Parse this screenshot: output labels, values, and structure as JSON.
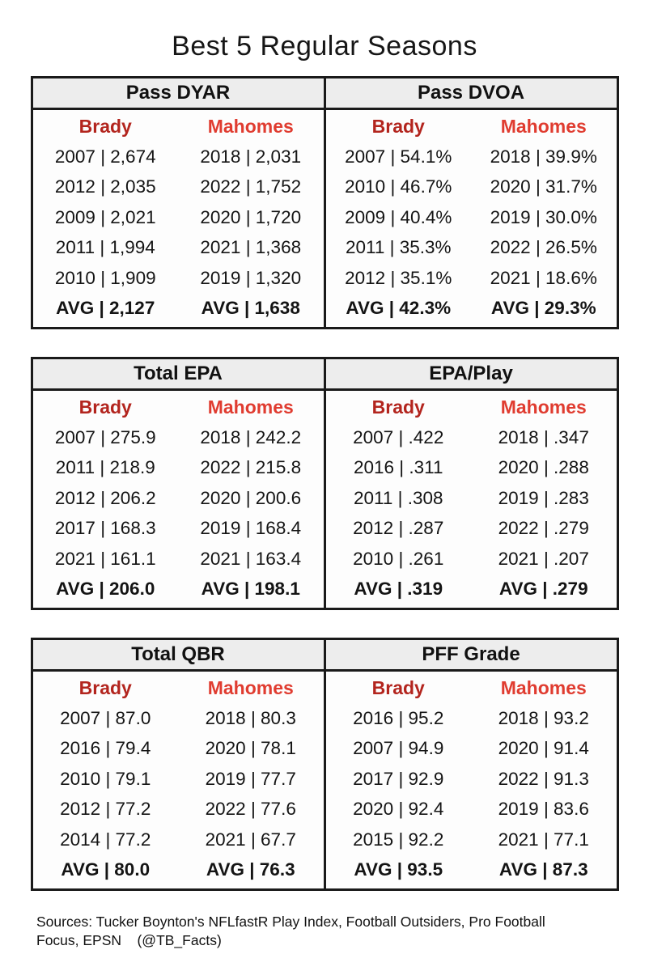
{
  "title": "Best 5 Regular Seasons",
  "colors": {
    "brady_red": "#b3251e",
    "mahomes_red": "#e03c30",
    "header_bg": "#ededed",
    "border": "#1a1a1a",
    "text": "#141414"
  },
  "metrics": [
    {
      "title": "Pass DYAR",
      "columns": [
        {
          "player": "Brady",
          "rows": [
            "2007 | 2,674",
            "2012 | 2,035",
            "2009 | 2,021",
            "2011 | 1,994",
            "2010 | 1,909",
            "AVG | 2,127"
          ]
        },
        {
          "player": "Mahomes",
          "rows": [
            "2018 | 2,031",
            "2022 | 1,752",
            "2020 | 1,720",
            "2021 | 1,368",
            "2019 | 1,320",
            "AVG | 1,638"
          ]
        }
      ]
    },
    {
      "title": "Pass DVOA",
      "columns": [
        {
          "player": "Brady",
          "rows": [
            "2007 | 54.1%",
            "2010 | 46.7%",
            "2009 | 40.4%",
            "2011 | 35.3%",
            "2012 | 35.1%",
            "AVG | 42.3%"
          ]
        },
        {
          "player": "Mahomes",
          "rows": [
            "2018 | 39.9%",
            "2020 | 31.7%",
            "2019 | 30.0%",
            "2022 | 26.5%",
            "2021 | 18.6%",
            "AVG | 29.3%"
          ]
        }
      ]
    },
    {
      "title": "Total EPA",
      "columns": [
        {
          "player": "Brady",
          "rows": [
            "2007 | 275.9",
            "2011 | 218.9",
            "2012 | 206.2",
            "2017 | 168.3",
            "2021 | 161.1",
            "AVG | 206.0"
          ]
        },
        {
          "player": "Mahomes",
          "rows": [
            "2018 | 242.2",
            "2022 | 215.8",
            "2020 | 200.6",
            "2019 | 168.4",
            "2021 | 163.4",
            "AVG | 198.1"
          ]
        }
      ]
    },
    {
      "title": "EPA/Play",
      "columns": [
        {
          "player": "Brady",
          "rows": [
            "2007 | .422",
            "2016 | .311",
            "2011 | .308",
            "2012 | .287",
            "2010 | .261",
            "AVG | .319"
          ]
        },
        {
          "player": "Mahomes",
          "rows": [
            "2018 | .347",
            "2020 | .288",
            "2019 | .283",
            "2022 | .279",
            "2021 | .207",
            "AVG | .279"
          ]
        }
      ]
    },
    {
      "title": "Total QBR",
      "columns": [
        {
          "player": "Brady",
          "rows": [
            "2007 | 87.0",
            "2016 | 79.4",
            "2010 | 79.1",
            "2012 | 77.2",
            "2014 | 77.2",
            "AVG | 80.0"
          ]
        },
        {
          "player": "Mahomes",
          "rows": [
            "2018 | 80.3",
            "2020 | 78.1",
            "2019 | 77.7",
            "2022 | 77.6",
            "2021 | 67.7",
            "AVG | 76.3"
          ]
        }
      ]
    },
    {
      "title": "PFF Grade",
      "columns": [
        {
          "player": "Brady",
          "rows": [
            "2016 | 95.2",
            "2007 | 94.9",
            "2017 | 92.9",
            "2020 | 92.4",
            "2015 | 92.2",
            "AVG | 93.5"
          ]
        },
        {
          "player": "Mahomes",
          "rows": [
            "2018 | 93.2",
            "2020 | 91.4",
            "2022 | 91.3",
            "2019 | 83.6",
            "2021 | 77.1",
            "AVG | 87.3"
          ]
        }
      ]
    }
  ],
  "chart_data": [
    {
      "type": "table",
      "title": "Pass DYAR",
      "series": [
        {
          "name": "Brady",
          "points": [
            {
              "year": 2007,
              "value": 2674
            },
            {
              "year": 2012,
              "value": 2035
            },
            {
              "year": 2009,
              "value": 2021
            },
            {
              "year": 2011,
              "value": 1994
            },
            {
              "year": 2010,
              "value": 1909
            }
          ],
          "avg": 2127
        },
        {
          "name": "Mahomes",
          "points": [
            {
              "year": 2018,
              "value": 2031
            },
            {
              "year": 2022,
              "value": 1752
            },
            {
              "year": 2020,
              "value": 1720
            },
            {
              "year": 2021,
              "value": 1368
            },
            {
              "year": 2019,
              "value": 1320
            }
          ],
          "avg": 1638
        }
      ]
    },
    {
      "type": "table",
      "title": "Pass DVOA",
      "unit": "%",
      "series": [
        {
          "name": "Brady",
          "points": [
            {
              "year": 2007,
              "value": 54.1
            },
            {
              "year": 2010,
              "value": 46.7
            },
            {
              "year": 2009,
              "value": 40.4
            },
            {
              "year": 2011,
              "value": 35.3
            },
            {
              "year": 2012,
              "value": 35.1
            }
          ],
          "avg": 42.3
        },
        {
          "name": "Mahomes",
          "points": [
            {
              "year": 2018,
              "value": 39.9
            },
            {
              "year": 2020,
              "value": 31.7
            },
            {
              "year": 2019,
              "value": 30.0
            },
            {
              "year": 2022,
              "value": 26.5
            },
            {
              "year": 2021,
              "value": 18.6
            }
          ],
          "avg": 29.3
        }
      ]
    },
    {
      "type": "table",
      "title": "Total EPA",
      "series": [
        {
          "name": "Brady",
          "points": [
            {
              "year": 2007,
              "value": 275.9
            },
            {
              "year": 2011,
              "value": 218.9
            },
            {
              "year": 2012,
              "value": 206.2
            },
            {
              "year": 2017,
              "value": 168.3
            },
            {
              "year": 2021,
              "value": 161.1
            }
          ],
          "avg": 206.0
        },
        {
          "name": "Mahomes",
          "points": [
            {
              "year": 2018,
              "value": 242.2
            },
            {
              "year": 2022,
              "value": 215.8
            },
            {
              "year": 2020,
              "value": 200.6
            },
            {
              "year": 2019,
              "value": 168.4
            },
            {
              "year": 2021,
              "value": 163.4
            }
          ],
          "avg": 198.1
        }
      ]
    },
    {
      "type": "table",
      "title": "EPA/Play",
      "series": [
        {
          "name": "Brady",
          "points": [
            {
              "year": 2007,
              "value": 0.422
            },
            {
              "year": 2016,
              "value": 0.311
            },
            {
              "year": 2011,
              "value": 0.308
            },
            {
              "year": 2012,
              "value": 0.287
            },
            {
              "year": 2010,
              "value": 0.261
            }
          ],
          "avg": 0.319
        },
        {
          "name": "Mahomes",
          "points": [
            {
              "year": 2018,
              "value": 0.347
            },
            {
              "year": 2020,
              "value": 0.288
            },
            {
              "year": 2019,
              "value": 0.283
            },
            {
              "year": 2022,
              "value": 0.279
            },
            {
              "year": 2021,
              "value": 0.207
            }
          ],
          "avg": 0.279
        }
      ]
    },
    {
      "type": "table",
      "title": "Total QBR",
      "series": [
        {
          "name": "Brady",
          "points": [
            {
              "year": 2007,
              "value": 87.0
            },
            {
              "year": 2016,
              "value": 79.4
            },
            {
              "year": 2010,
              "value": 79.1
            },
            {
              "year": 2012,
              "value": 77.2
            },
            {
              "year": 2014,
              "value": 77.2
            }
          ],
          "avg": 80.0
        },
        {
          "name": "Mahomes",
          "points": [
            {
              "year": 2018,
              "value": 80.3
            },
            {
              "year": 2020,
              "value": 78.1
            },
            {
              "year": 2019,
              "value": 77.7
            },
            {
              "year": 2022,
              "value": 77.6
            },
            {
              "year": 2021,
              "value": 67.7
            }
          ],
          "avg": 76.3
        }
      ]
    },
    {
      "type": "table",
      "title": "PFF Grade",
      "series": [
        {
          "name": "Brady",
          "points": [
            {
              "year": 2016,
              "value": 95.2
            },
            {
              "year": 2007,
              "value": 94.9
            },
            {
              "year": 2017,
              "value": 92.9
            },
            {
              "year": 2020,
              "value": 92.4
            },
            {
              "year": 2015,
              "value": 92.2
            }
          ],
          "avg": 93.5
        },
        {
          "name": "Mahomes",
          "points": [
            {
              "year": 2018,
              "value": 93.2
            },
            {
              "year": 2020,
              "value": 91.4
            },
            {
              "year": 2022,
              "value": 91.3
            },
            {
              "year": 2019,
              "value": 83.6
            },
            {
              "year": 2021,
              "value": 77.1
            }
          ],
          "avg": 87.3
        }
      ]
    }
  ],
  "footer": {
    "sources": "Sources: Tucker Boynton's NFLfastR Play Index, Football Outsiders, Pro Football\nFocus, EPSN    (@TB_Facts)"
  }
}
